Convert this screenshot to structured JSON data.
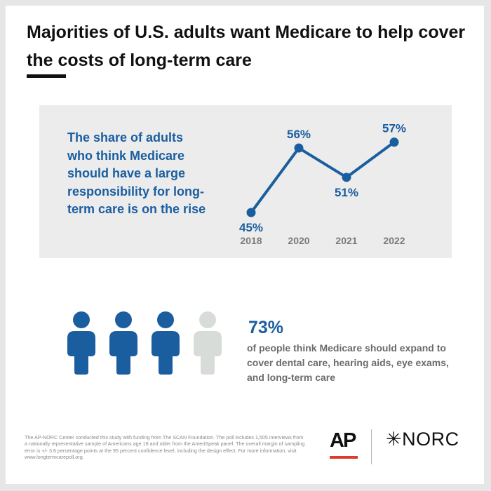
{
  "header": {
    "title": "Majorities of U.S. adults want Medicare to help cover the costs of long-term care"
  },
  "panel": {
    "text": "The share of adults who think Medicare should have a large responsibility for long-term care is on the rise"
  },
  "chart_data": {
    "type": "line",
    "x": [
      "2018",
      "2020",
      "2021",
      "2022"
    ],
    "values": [
      45,
      56,
      51,
      57
    ],
    "labels": [
      "45%",
      "56%",
      "51%",
      "57%"
    ],
    "unit": "%",
    "color": "#1b5ea0",
    "grid": false
  },
  "stat": {
    "value": "73%",
    "text": "of people think Medicare should expand to cover dental care, hearing aids, eye exams, and long-term care",
    "people_total": 4,
    "people_highlighted": 3,
    "highlight_color": "#1b5ea0",
    "muted_color": "#d8dcd8"
  },
  "footnote": "The AP-NORC Center conducted this study with funding from The SCAN Foundation. The poll includes 1,505 interviews from a nationally representative sample of Americans age 18 and older from the AmeriSpeak panel. The overall margin of sampling error is +/- 3.6 percentage points at the 95 percent confidence level, including the design effect. For more information, visit www.longtermcarepoll.org.",
  "logos": {
    "ap": "AP",
    "norc": "NORC",
    "ap_accent": "#e03a2f"
  }
}
